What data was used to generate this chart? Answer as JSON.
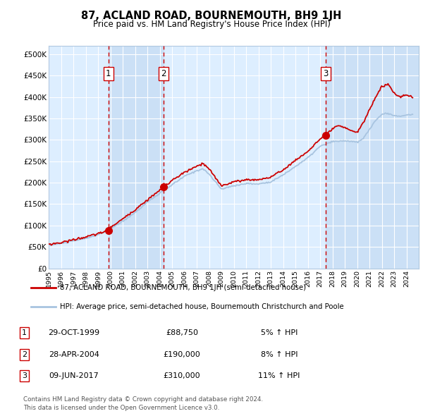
{
  "title": "87, ACLAND ROAD, BOURNEMOUTH, BH9 1JH",
  "subtitle": "Price paid vs. HM Land Registry's House Price Index (HPI)",
  "ylabel_ticks": [
    "£0",
    "£50K",
    "£100K",
    "£150K",
    "£200K",
    "£250K",
    "£300K",
    "£350K",
    "£400K",
    "£450K",
    "£500K"
  ],
  "ytick_values": [
    0,
    50000,
    100000,
    150000,
    200000,
    250000,
    300000,
    350000,
    400000,
    450000,
    500000
  ],
  "xlim_start": 1995.0,
  "xlim_end": 2025.0,
  "ylim_min": 0,
  "ylim_max": 520000,
  "hpi_color": "#a8c4e0",
  "price_color": "#cc0000",
  "bg_color": "#ddeeff",
  "grid_color": "#ffffff",
  "purchase_dates": [
    1999.833,
    2004.33,
    2017.44
  ],
  "purchase_prices": [
    88750,
    190000,
    310000
  ],
  "purchase_labels": [
    "1",
    "2",
    "3"
  ],
  "vline_color": "#cc0000",
  "legend_line1": "87, ACLAND ROAD, BOURNEMOUTH, BH9 1JH (semi-detached house)",
  "legend_line2": "HPI: Average price, semi-detached house, Bournemouth Christchurch and Poole",
  "table_rows": [
    {
      "num": "1",
      "date": "29-OCT-1999",
      "price": "£88,750",
      "change": "5% ↑ HPI"
    },
    {
      "num": "2",
      "date": "28-APR-2004",
      "price": "£190,000",
      "change": "8% ↑ HPI"
    },
    {
      "num": "3",
      "date": "09-JUN-2017",
      "price": "£310,000",
      "change": "11% ↑ HPI"
    }
  ],
  "footer": "Contains HM Land Registry data © Crown copyright and database right 2024.\nThis data is licensed under the Open Government Licence v3.0.",
  "hpi_anchors_x": [
    1995,
    1996,
    1997,
    1998,
    1999,
    2000,
    2001,
    2002,
    2003,
    2004,
    2005,
    2006,
    2007,
    2007.5,
    2008,
    2009,
    2010,
    2011,
    2012,
    2013,
    2014,
    2015,
    2016,
    2017,
    2018,
    2019,
    2019.5,
    2020,
    2020.5,
    2021,
    2021.5,
    2022,
    2022.5,
    2023,
    2023.5,
    2024,
    2024.5
  ],
  "hpi_anchors_y": [
    54000,
    58000,
    64000,
    70000,
    78000,
    92000,
    110000,
    130000,
    155000,
    175000,
    195000,
    215000,
    228000,
    233000,
    220000,
    185000,
    193000,
    198000,
    197000,
    202000,
    218000,
    238000,
    258000,
    285000,
    296000,
    298000,
    297000,
    294000,
    303000,
    325000,
    345000,
    360000,
    362000,
    357000,
    355000,
    358000,
    360000
  ],
  "prop_anchors_x": [
    1995,
    1996,
    1997,
    1998,
    1999,
    1999.833,
    2000,
    2001,
    2002,
    2003,
    2004,
    2004.33,
    2005,
    2006,
    2007,
    2007.5,
    2008,
    2009,
    2010,
    2011,
    2012,
    2013,
    2014,
    2015,
    2016,
    2017,
    2017.44,
    2018,
    2018.5,
    2019,
    2019.5,
    2020,
    2020.5,
    2021,
    2021.5,
    2022,
    2022.5,
    2023,
    2023.5,
    2024,
    2024.5
  ],
  "prop_anchors_y": [
    56000,
    60000,
    67000,
    73000,
    81000,
    88750,
    96000,
    115000,
    137000,
    160000,
    182000,
    190000,
    205000,
    224000,
    238000,
    245000,
    232000,
    193000,
    202000,
    207000,
    207000,
    213000,
    230000,
    252000,
    273000,
    302000,
    310000,
    326000,
    333000,
    328000,
    323000,
    317000,
    340000,
    370000,
    400000,
    425000,
    430000,
    410000,
    400000,
    405000,
    400000
  ]
}
